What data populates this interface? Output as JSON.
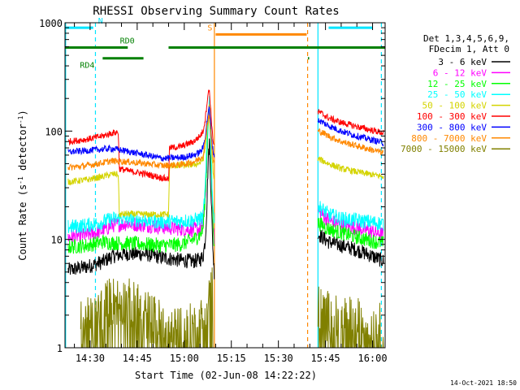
{
  "chart_data": {
    "type": "line",
    "title": "RHESSI Observing Summary Count Rates",
    "xlabel": "Start Time (02-Jun-08 14:22:22)",
    "ylabel_main": "Count Rate (s",
    "ylabel_sup1": "-1",
    "ylabel_mid": " detector",
    "ylabel_sup2": "-1",
    "ylabel_end": ")",
    "yscale": "log",
    "ylim": [
      1,
      1000
    ],
    "xlim_min": [
      862,
      964
    ],
    "yticks": [
      {
        "value": 1,
        "label": "1"
      },
      {
        "value": 10,
        "label": "10"
      },
      {
        "value": 100,
        "label": "100"
      },
      {
        "value": 1000,
        "label": "1000"
      }
    ],
    "xticks": [
      {
        "value": 870,
        "label": "14:30"
      },
      {
        "value": 885,
        "label": "14:45"
      },
      {
        "value": 900,
        "label": "15:00"
      },
      {
        "value": 915,
        "label": "15:15"
      },
      {
        "value": 930,
        "label": "15:30"
      },
      {
        "value": 945,
        "label": "15:45"
      },
      {
        "value": 960,
        "label": "16:00"
      }
    ],
    "legend_header": [
      "Det 1,3,4,5,6,9,",
      "FDecim 1, Att 0"
    ],
    "legend_position": "right",
    "series": [
      {
        "name": "3 - 6 keV",
        "color": "#000000",
        "points": [
          [
            863,
            5.2
          ],
          [
            869,
            5.6
          ],
          [
            874,
            6.2
          ],
          [
            877,
            7.0
          ],
          [
            882,
            7.4
          ],
          [
            888,
            7.3
          ],
          [
            893,
            6.8
          ],
          [
            899,
            6.4
          ],
          [
            903,
            6.3
          ],
          [
            905,
            6.5
          ],
          [
            906,
            7
          ],
          [
            906.7,
            10
          ],
          [
            907.2,
            20
          ],
          [
            907.6,
            50
          ],
          [
            908,
            80
          ],
          [
            908.5,
            30
          ],
          [
            909,
            10
          ],
          [
            909.5,
            5
          ],
          [
            943,
            11
          ],
          [
            946,
            9.5
          ],
          [
            950,
            8.8
          ],
          [
            955,
            8
          ],
          [
            959,
            7.2
          ],
          [
            963.5,
            6.3
          ]
        ]
      },
      {
        "name": "6 - 12 keV",
        "color": "#ff00ff",
        "points": [
          [
            863,
            10.5
          ],
          [
            869,
            11
          ],
          [
            874,
            12
          ],
          [
            877,
            13.5
          ],
          [
            882,
            14
          ],
          [
            888,
            13.5
          ],
          [
            893,
            13
          ],
          [
            899,
            12.5
          ],
          [
            903,
            12.3
          ],
          [
            905,
            12.5
          ],
          [
            906,
            14
          ],
          [
            906.7,
            25
          ],
          [
            907.2,
            50
          ],
          [
            907.6,
            120
          ],
          [
            908,
            170
          ],
          [
            908.5,
            60
          ],
          [
            909,
            20
          ],
          [
            909.5,
            10
          ],
          [
            943,
            18
          ],
          [
            946,
            15
          ],
          [
            950,
            13.5
          ],
          [
            955,
            12.8
          ],
          [
            959,
            12
          ],
          [
            963.5,
            11
          ]
        ]
      },
      {
        "name": "12 - 25 keV",
        "color": "#00ff00",
        "points": [
          [
            863,
            8.5
          ],
          [
            869,
            8.8
          ],
          [
            874,
            9.5
          ],
          [
            877,
            9.3
          ],
          [
            882,
            9.2
          ],
          [
            888,
            9
          ],
          [
            893,
            8.8
          ],
          [
            899,
            9
          ],
          [
            903,
            10
          ],
          [
            905,
            11
          ],
          [
            906,
            12.5
          ],
          [
            906.7,
            25
          ],
          [
            907.2,
            55
          ],
          [
            907.6,
            130
          ],
          [
            908,
            180
          ],
          [
            908.5,
            60
          ],
          [
            909,
            20
          ],
          [
            909.5,
            9
          ],
          [
            943,
            14
          ],
          [
            946,
            12.5
          ],
          [
            950,
            11.5
          ],
          [
            955,
            10.5
          ],
          [
            959,
            9.8
          ],
          [
            963.5,
            9.2
          ]
        ]
      },
      {
        "name": "25 - 50 keV",
        "color": "#00ffff",
        "points": [
          [
            863,
            13
          ],
          [
            869,
            13.5
          ],
          [
            874,
            14.5
          ],
          [
            877,
            15.5
          ],
          [
            882,
            15.5
          ],
          [
            888,
            15
          ],
          [
            893,
            14.5
          ],
          [
            899,
            14.8
          ],
          [
            903,
            15
          ],
          [
            905,
            15.5
          ],
          [
            906,
            16
          ],
          [
            906.7,
            30
          ],
          [
            907.2,
            70
          ],
          [
            907.6,
            150
          ],
          [
            908,
            200
          ],
          [
            908.5,
            70
          ],
          [
            909,
            25
          ],
          [
            909.5,
            14
          ],
          [
            943,
            20
          ],
          [
            946,
            17
          ],
          [
            950,
            15.5
          ],
          [
            955,
            15
          ],
          [
            959,
            14.5
          ],
          [
            963.5,
            14
          ]
        ]
      },
      {
        "name": "50 - 100 keV",
        "color": "#d4d400",
        "points": [
          [
            863,
            34
          ],
          [
            869,
            35.5
          ],
          [
            874,
            38
          ],
          [
            877,
            40
          ],
          [
            879,
            40
          ],
          [
            879.3,
            17
          ],
          [
            882,
            17.2
          ],
          [
            888,
            17
          ],
          [
            893,
            17
          ],
          [
            895,
            17
          ],
          [
            895.3,
            48
          ],
          [
            899,
            48
          ],
          [
            903,
            49
          ],
          [
            905,
            51
          ],
          [
            906,
            55
          ],
          [
            906.7,
            70
          ],
          [
            907.2,
            100
          ],
          [
            907.6,
            140
          ],
          [
            908,
            170
          ],
          [
            908.5,
            90
          ],
          [
            909,
            50
          ],
          [
            909.5,
            35
          ],
          [
            943,
            55
          ],
          [
            946,
            50
          ],
          [
            950,
            45
          ],
          [
            955,
            42
          ],
          [
            959,
            40
          ],
          [
            963.5,
            38
          ]
        ]
      },
      {
        "name": "100 - 300 keV",
        "color": "#ff0000",
        "points": [
          [
            863,
            80
          ],
          [
            869,
            84
          ],
          [
            874,
            90
          ],
          [
            877,
            96
          ],
          [
            879,
            98
          ],
          [
            879.3,
            45
          ],
          [
            882,
            43
          ],
          [
            888,
            40
          ],
          [
            893,
            37
          ],
          [
            895,
            36
          ],
          [
            895.3,
            70
          ],
          [
            899,
            72
          ],
          [
            903,
            80
          ],
          [
            905,
            90
          ],
          [
            906,
            100
          ],
          [
            906.7,
            130
          ],
          [
            907.2,
            180
          ],
          [
            907.6,
            220
          ],
          [
            908,
            240
          ],
          [
            908.5,
            150
          ],
          [
            909,
            90
          ],
          [
            909.5,
            75
          ],
          [
            943,
            150
          ],
          [
            946,
            132
          ],
          [
            950,
            120
          ],
          [
            955,
            110
          ],
          [
            959,
            103
          ],
          [
            963.5,
            96
          ]
        ]
      },
      {
        "name": "300 - 800 keV",
        "color": "#0000ff",
        "points": [
          [
            863,
            64
          ],
          [
            869,
            66
          ],
          [
            874,
            68
          ],
          [
            877,
            69
          ],
          [
            882,
            65
          ],
          [
            888,
            60
          ],
          [
            893,
            56
          ],
          [
            899,
            57
          ],
          [
            903,
            60
          ],
          [
            905,
            64
          ],
          [
            906,
            70
          ],
          [
            906.7,
            90
          ],
          [
            907.2,
            120
          ],
          [
            907.6,
            150
          ],
          [
            908,
            160
          ],
          [
            908.5,
            110
          ],
          [
            909,
            70
          ],
          [
            909.5,
            60
          ],
          [
            943,
            125
          ],
          [
            946,
            112
          ],
          [
            950,
            100
          ],
          [
            955,
            90
          ],
          [
            959,
            84
          ],
          [
            963.5,
            78
          ]
        ]
      },
      {
        "name": "800 - 7000 keV",
        "color": "#ff8800",
        "points": [
          [
            863,
            46
          ],
          [
            869,
            48
          ],
          [
            874,
            51
          ],
          [
            877,
            53
          ],
          [
            882,
            52
          ],
          [
            888,
            50
          ],
          [
            893,
            48
          ],
          [
            899,
            49
          ],
          [
            903,
            52
          ],
          [
            905,
            56
          ],
          [
            906,
            60
          ],
          [
            906.7,
            80
          ],
          [
            907.2,
            110
          ],
          [
            907.6,
            130
          ],
          [
            908,
            140
          ],
          [
            908.5,
            95
          ],
          [
            909,
            60
          ],
          [
            909.5,
            50
          ],
          [
            943,
            100
          ],
          [
            946,
            90
          ],
          [
            950,
            80
          ],
          [
            955,
            73
          ],
          [
            959,
            68
          ],
          [
            963.5,
            63
          ]
        ]
      },
      {
        "name": "7000 - 15000 keV",
        "color": "#808000",
        "points": [
          [
            867,
            1.6
          ],
          [
            872,
            1.8
          ],
          [
            874,
            2.4
          ],
          [
            877,
            2.7
          ],
          [
            882,
            2.6
          ],
          [
            885,
            2.3
          ],
          [
            888,
            2.0
          ],
          [
            893,
            1.6
          ],
          [
            899,
            1.5
          ],
          [
            903,
            1.5
          ],
          [
            905,
            1.6
          ],
          [
            906,
            1.9
          ],
          [
            907,
            2.5
          ],
          [
            908,
            3.5
          ],
          [
            908.5,
            3.8
          ],
          [
            909,
            3.5
          ],
          [
            943,
            2.2
          ],
          [
            945,
            2.0
          ],
          [
            950,
            1.8
          ],
          [
            955,
            1.7
          ],
          [
            959,
            1.6
          ],
          [
            963.5,
            1.5
          ]
        ]
      }
    ],
    "flag_bars": [
      {
        "label": "N",
        "color": "#00e5ff",
        "y": 900,
        "segments": [
          [
            862,
            871
          ],
          [
            946,
            960
          ]
        ]
      },
      {
        "label": "S",
        "color": "#ff8800",
        "y": 780,
        "segments": [
          [
            910,
            939
          ]
        ]
      },
      {
        "label": "RD0",
        "color": "#008000",
        "y": 590,
        "segments": [
          [
            862,
            882
          ],
          [
            895,
            964
          ]
        ]
      },
      {
        "label": "RD4",
        "color": "#008000",
        "y": 470,
        "segments": [
          [
            874,
            887
          ],
          [
            939.4,
            939.8
          ]
        ]
      }
    ],
    "vlines": [
      {
        "x": 862.2,
        "color": "#00e5ff",
        "dash": false
      },
      {
        "x": 871.7,
        "color": "#00e5ff",
        "dash": true
      },
      {
        "x": 909.6,
        "color": "#ff8800",
        "dash": false
      },
      {
        "x": 939.3,
        "color": "#ff8800",
        "dash": true
      },
      {
        "x": 942.6,
        "color": "#00e5ff",
        "dash": false
      },
      {
        "x": 962.8,
        "color": "#00e5ff",
        "dash": true
      }
    ],
    "timestamp": "14-Oct-2021 18:50"
  }
}
